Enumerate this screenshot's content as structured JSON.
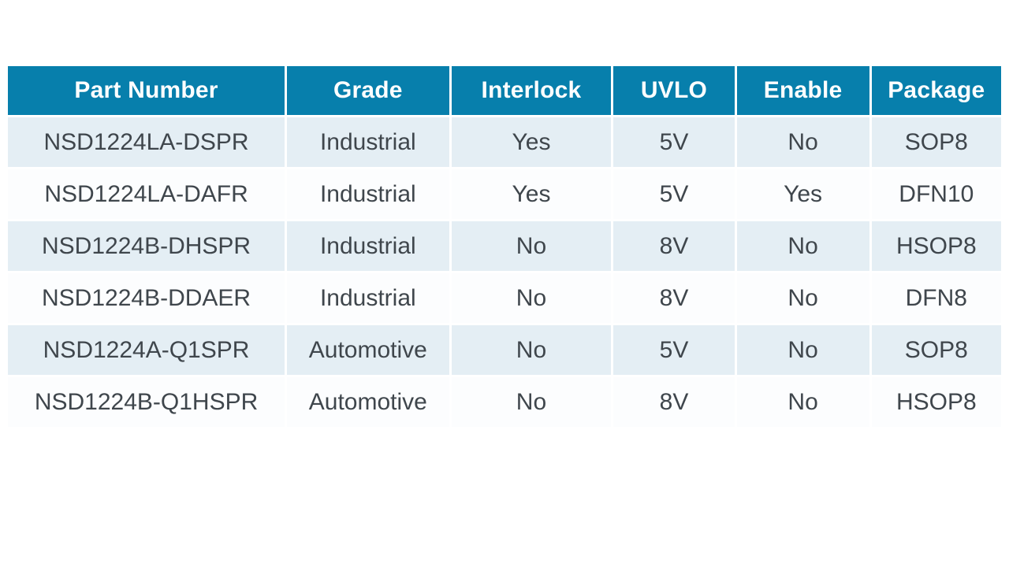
{
  "page": {
    "background": "#ffffff"
  },
  "table": {
    "columns": [
      "Part Number",
      "Grade",
      "Interlock",
      "UVLO",
      "Enable",
      "Package"
    ],
    "rows": [
      [
        "NSD1224LA-DSPR",
        "Industrial",
        "Yes",
        "5V",
        "No",
        "SOP8"
      ],
      [
        "NSD1224LA-DAFR",
        "Industrial",
        "Yes",
        "5V",
        "Yes",
        "DFN10"
      ],
      [
        "NSD1224B-DHSPR",
        "Industrial",
        "No",
        "8V",
        "No",
        "HSOP8"
      ],
      [
        "NSD1224B-DDAER",
        "Industrial",
        "No",
        "8V",
        "No",
        "DFN8"
      ],
      [
        "NSD1224A-Q1SPR",
        "Automotive",
        "No",
        "5V",
        "No",
        "SOP8"
      ],
      [
        "NSD1224B-Q1HSPR",
        "Automotive",
        "No",
        "8V",
        "No",
        "HSOP8"
      ]
    ],
    "colors": {
      "header_bg": "#077fac",
      "header_text": "#ffffff",
      "row_alt_bg": "#e4eef4",
      "row_bg": "#fcfdfe",
      "body_text": "#3f464c"
    }
  }
}
